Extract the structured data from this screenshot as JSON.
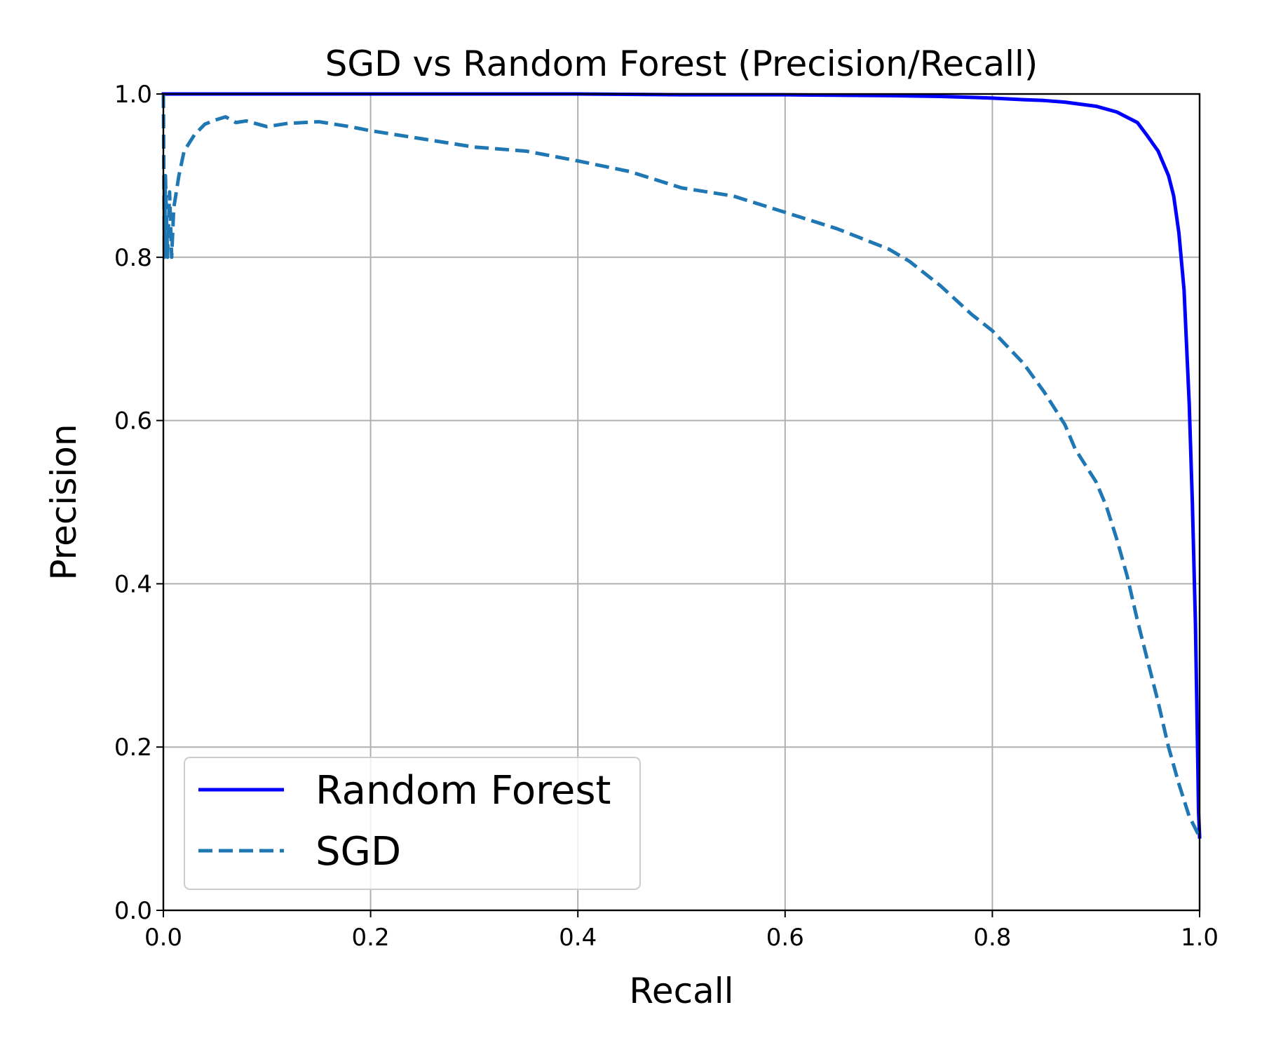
{
  "chart_data": {
    "type": "line",
    "title": "SGD vs Random Forest (Precision/Recall)",
    "xlabel": "Recall",
    "ylabel": "Precision",
    "xlim": [
      0.0,
      1.0
    ],
    "ylim": [
      0.0,
      1.0
    ],
    "xticks": [
      "0.0",
      "0.2",
      "0.4",
      "0.6",
      "0.8",
      "1.0"
    ],
    "yticks": [
      "0.0",
      "0.2",
      "0.4",
      "0.6",
      "0.8",
      "1.0"
    ],
    "grid": true,
    "legend_position": "lower-left",
    "series": [
      {
        "name": "Random Forest",
        "color": "#0000ff",
        "style": "solid",
        "x": [
          0.0,
          0.003,
          0.05,
          0.1,
          0.2,
          0.3,
          0.4,
          0.5,
          0.6,
          0.7,
          0.75,
          0.8,
          0.83,
          0.85,
          0.87,
          0.9,
          0.92,
          0.94,
          0.95,
          0.96,
          0.97,
          0.975,
          0.98,
          0.985,
          0.99,
          0.993,
          0.996,
          0.998,
          0.999,
          1.0
        ],
        "y": [
          1.0,
          1.0,
          1.0,
          1.0,
          1.0,
          1.0,
          1.0,
          0.999,
          0.999,
          0.998,
          0.997,
          0.995,
          0.993,
          0.992,
          0.99,
          0.985,
          0.978,
          0.965,
          0.948,
          0.93,
          0.9,
          0.875,
          0.83,
          0.76,
          0.62,
          0.5,
          0.35,
          0.2,
          0.12,
          0.09
        ]
      },
      {
        "name": "SGD",
        "color": "#1f77b4",
        "style": "dashed",
        "x": [
          0.0,
          0.001,
          0.002,
          0.004,
          0.006,
          0.008,
          0.01,
          0.015,
          0.02,
          0.03,
          0.04,
          0.05,
          0.06,
          0.07,
          0.08,
          0.1,
          0.12,
          0.15,
          0.18,
          0.2,
          0.25,
          0.3,
          0.35,
          0.4,
          0.45,
          0.5,
          0.55,
          0.6,
          0.65,
          0.7,
          0.72,
          0.75,
          0.78,
          0.8,
          0.83,
          0.85,
          0.87,
          0.88,
          0.9,
          0.91,
          0.92,
          0.93,
          0.94,
          0.95,
          0.96,
          0.97,
          0.98,
          0.99,
          1.0
        ],
        "y": [
          1.0,
          0.8,
          0.9,
          0.8,
          0.88,
          0.8,
          0.86,
          0.9,
          0.93,
          0.95,
          0.963,
          0.968,
          0.972,
          0.965,
          0.967,
          0.96,
          0.964,
          0.966,
          0.96,
          0.955,
          0.945,
          0.935,
          0.93,
          0.918,
          0.905,
          0.885,
          0.875,
          0.855,
          0.835,
          0.81,
          0.795,
          0.765,
          0.73,
          0.71,
          0.67,
          0.635,
          0.595,
          0.565,
          0.525,
          0.495,
          0.455,
          0.41,
          0.355,
          0.305,
          0.255,
          0.2,
          0.155,
          0.115,
          0.09
        ]
      }
    ]
  }
}
